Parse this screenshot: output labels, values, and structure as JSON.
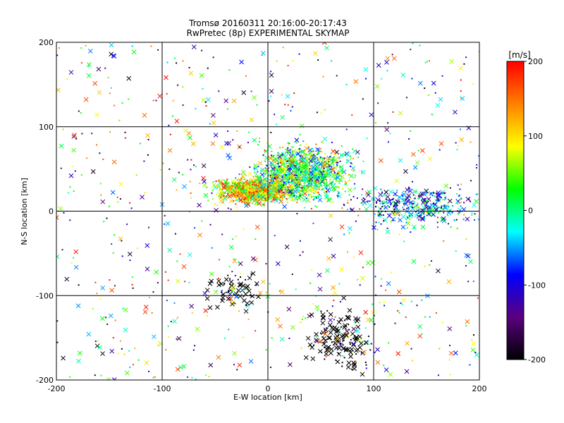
{
  "chart_data": {
    "type": "scatter",
    "title": "Tromsø 20160311 20:16:00-20:17:43",
    "subtitle": "RwPretec (8p) EXPERIMENTAL SKYMAP",
    "xlabel": "E-W location [km]",
    "ylabel": "N-S location [km]",
    "xlim": [
      -200,
      200
    ],
    "ylim": [
      -200,
      200
    ],
    "xticks": [
      "-200",
      "-100",
      "0",
      "100",
      "200"
    ],
    "yticks": [
      "-200",
      "-100",
      "0",
      "100",
      "200"
    ],
    "grid": true,
    "marker_types": [
      "dot",
      "x"
    ],
    "colorbar": {
      "label": "[m/s]",
      "range": [
        -200,
        200
      ],
      "ticks": [
        "200",
        "100",
        "0",
        "-100",
        "-200"
      ],
      "colors": [
        "#000000",
        "#5a007f",
        "#0000ff",
        "#00ffff",
        "#00ff00",
        "#ffff00",
        "#ff8000",
        "#ff0000"
      ]
    },
    "clusters": [
      {
        "region": "central dense cluster",
        "x_center": -10,
        "y_center": 25,
        "x_spread": 30,
        "y_spread": 12,
        "velocity_mean": 100
      },
      {
        "region": "north-east cluster",
        "x_center": 35,
        "y_center": 45,
        "x_spread": 35,
        "y_spread": 25,
        "velocity_mean": 10
      },
      {
        "region": "east arm",
        "x_center": 140,
        "y_center": 5,
        "x_spread": 45,
        "y_spread": 18,
        "velocity_mean": -60
      },
      {
        "region": "south-east sparse",
        "x_center": 70,
        "y_center": -150,
        "x_spread": 25,
        "y_spread": 30,
        "velocity_mean": -200
      },
      {
        "region": "south-central sparse",
        "x_center": -30,
        "y_center": -95,
        "x_spread": 20,
        "y_spread": 20,
        "velocity_mean": -200
      }
    ]
  }
}
